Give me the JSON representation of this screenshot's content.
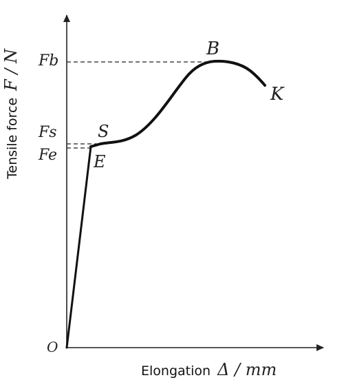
{
  "axes": {
    "y_label_prefix": "Tensile force",
    "y_label_unit": "F / N",
    "x_label_prefix": "Elongation",
    "x_label_unit": "Δ / mm",
    "origin": "O"
  },
  "levels": {
    "fb": "Fb",
    "fs": "Fs",
    "fe": "Fe"
  },
  "points": {
    "s": "S",
    "e": "E",
    "b": "B",
    "k": "K"
  }
}
